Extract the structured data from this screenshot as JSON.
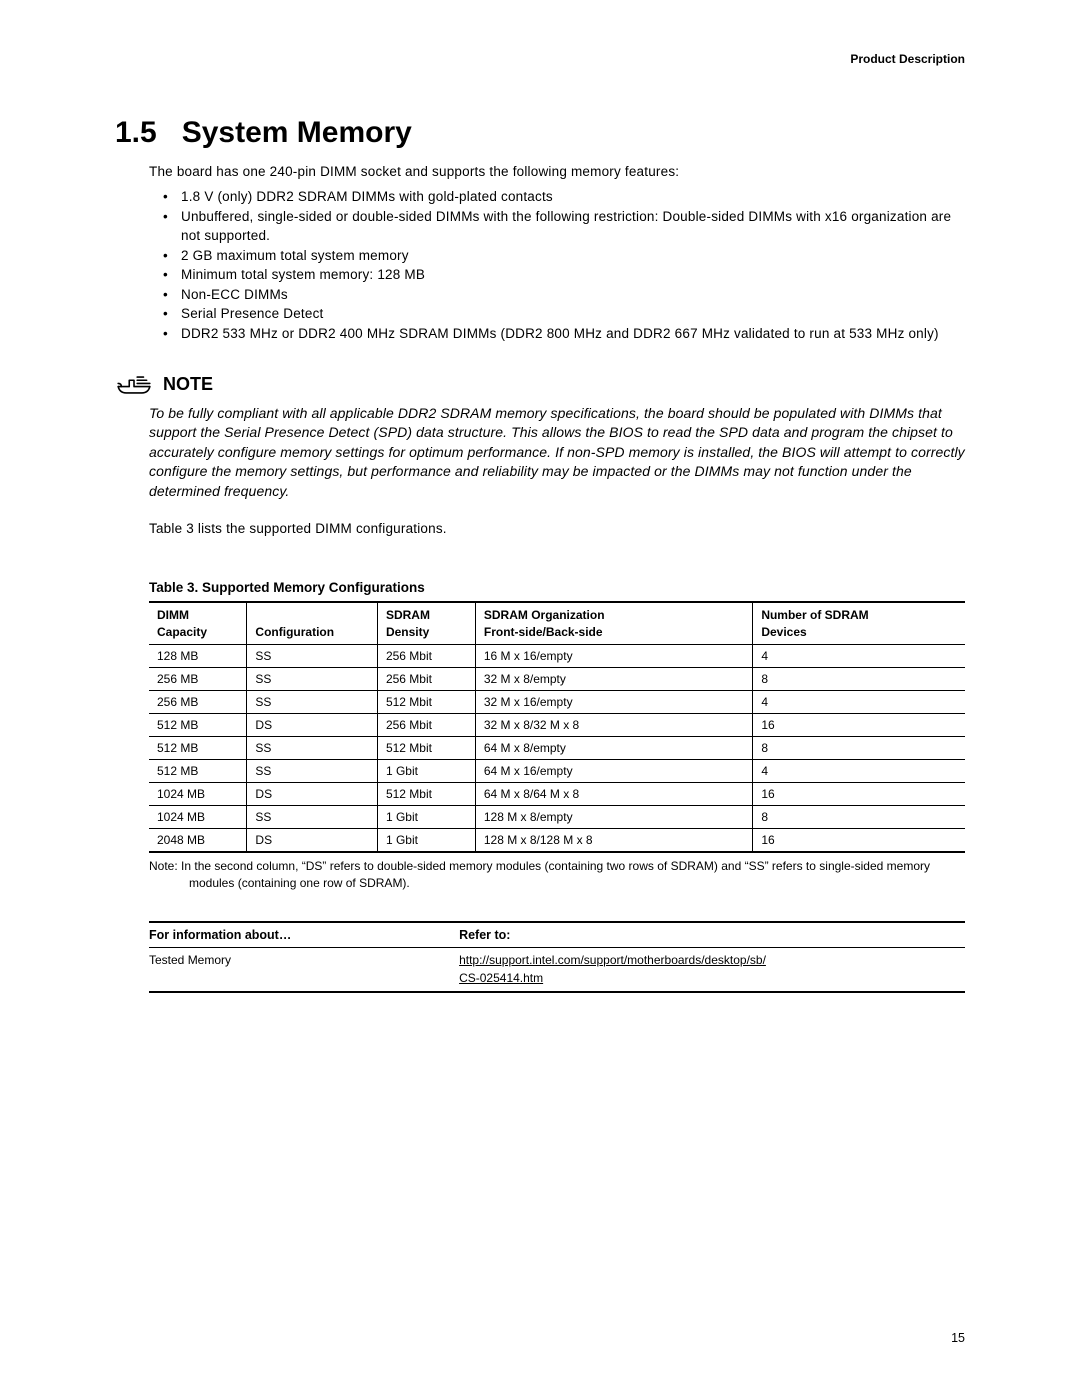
{
  "header": {
    "section_label": "Product Description"
  },
  "section": {
    "number": "1.5",
    "title": "System Memory",
    "intro": "The board has one 240-pin DIMM socket and supports the following memory features:",
    "bullets": [
      "1.8 V (only) DDR2 SDRAM DIMMs with gold-plated contacts",
      "Unbuffered, single-sided or double-sided DIMMs with the following restriction: Double-sided DIMMs with x16 organization are not supported.",
      "2 GB maximum total system memory",
      "Minimum total system memory:  128 MB",
      "Non-ECC DIMMs",
      "Serial Presence Detect",
      "DDR2 533 MHz or DDR2 400 MHz SDRAM DIMMs (DDR2 800 MHz and DDR2 667 MHz validated to run at 533 MHz only)"
    ]
  },
  "note": {
    "label": "NOTE",
    "body": "To be fully compliant with all applicable DDR2 SDRAM memory specifications, the board should be populated with DIMMs that support the Serial Presence Detect (SPD) data structure.  This allows the BIOS to read the SPD data and program the chipset to accurately configure memory settings for optimum performance.  If non-SPD memory is installed, the BIOS will attempt to correctly configure the memory settings, but performance and reliability may be impacted or the DIMMs may not function under the determined frequency."
  },
  "post_note": "Table 3 lists the supported DIMM configurations.",
  "mem_table": {
    "caption": "Table 3.  Supported Memory Configurations",
    "headers": {
      "c1a": "DIMM",
      "c1b": "Capacity",
      "c2a": "",
      "c2b": "Configuration",
      "c3a": "SDRAM",
      "c3b": "Density",
      "c4a": "SDRAM Organization",
      "c4b": "Front-side/Back-side",
      "c5a": "Number of SDRAM",
      "c5b": "Devices"
    },
    "rows": [
      [
        "128 MB",
        "SS",
        "256 Mbit",
        "16 M x 16/empty",
        "4"
      ],
      [
        "256 MB",
        "SS",
        "256 Mbit",
        "32 M x 8/empty",
        "8"
      ],
      [
        "256 MB",
        "SS",
        "512 Mbit",
        "32 M x 16/empty",
        "4"
      ],
      [
        "512 MB",
        "DS",
        "256 Mbit",
        "32 M x 8/32 M x 8",
        "16"
      ],
      [
        "512 MB",
        "SS",
        "512 Mbit",
        "64 M x 8/empty",
        "8"
      ],
      [
        "512 MB",
        "SS",
        "1 Gbit",
        "64 M x 16/empty",
        "4"
      ],
      [
        "1024 MB",
        "DS",
        "512 Mbit",
        "64 M x 8/64 M x 8",
        "16"
      ],
      [
        "1024 MB",
        "SS",
        "1 Gbit",
        "128 M x 8/empty",
        "8"
      ],
      [
        "2048 MB",
        "DS",
        "1 Gbit",
        "128 M x 8/128 M x 8",
        "16"
      ]
    ],
    "note": "Note: In the second column, “DS” refers to double-sided memory modules (containing two rows of SDRAM) and “SS” refers to single-sided memory modules (containing one row of SDRAM)."
  },
  "refer_table": {
    "h1": "For information about…",
    "h2": "Refer to:",
    "r1c1": "Tested Memory",
    "r1c2a": "http://support.intel.com/support/motherboards/desktop/sb/",
    "r1c2b": "CS-025414.htm"
  },
  "page_number": "15"
}
